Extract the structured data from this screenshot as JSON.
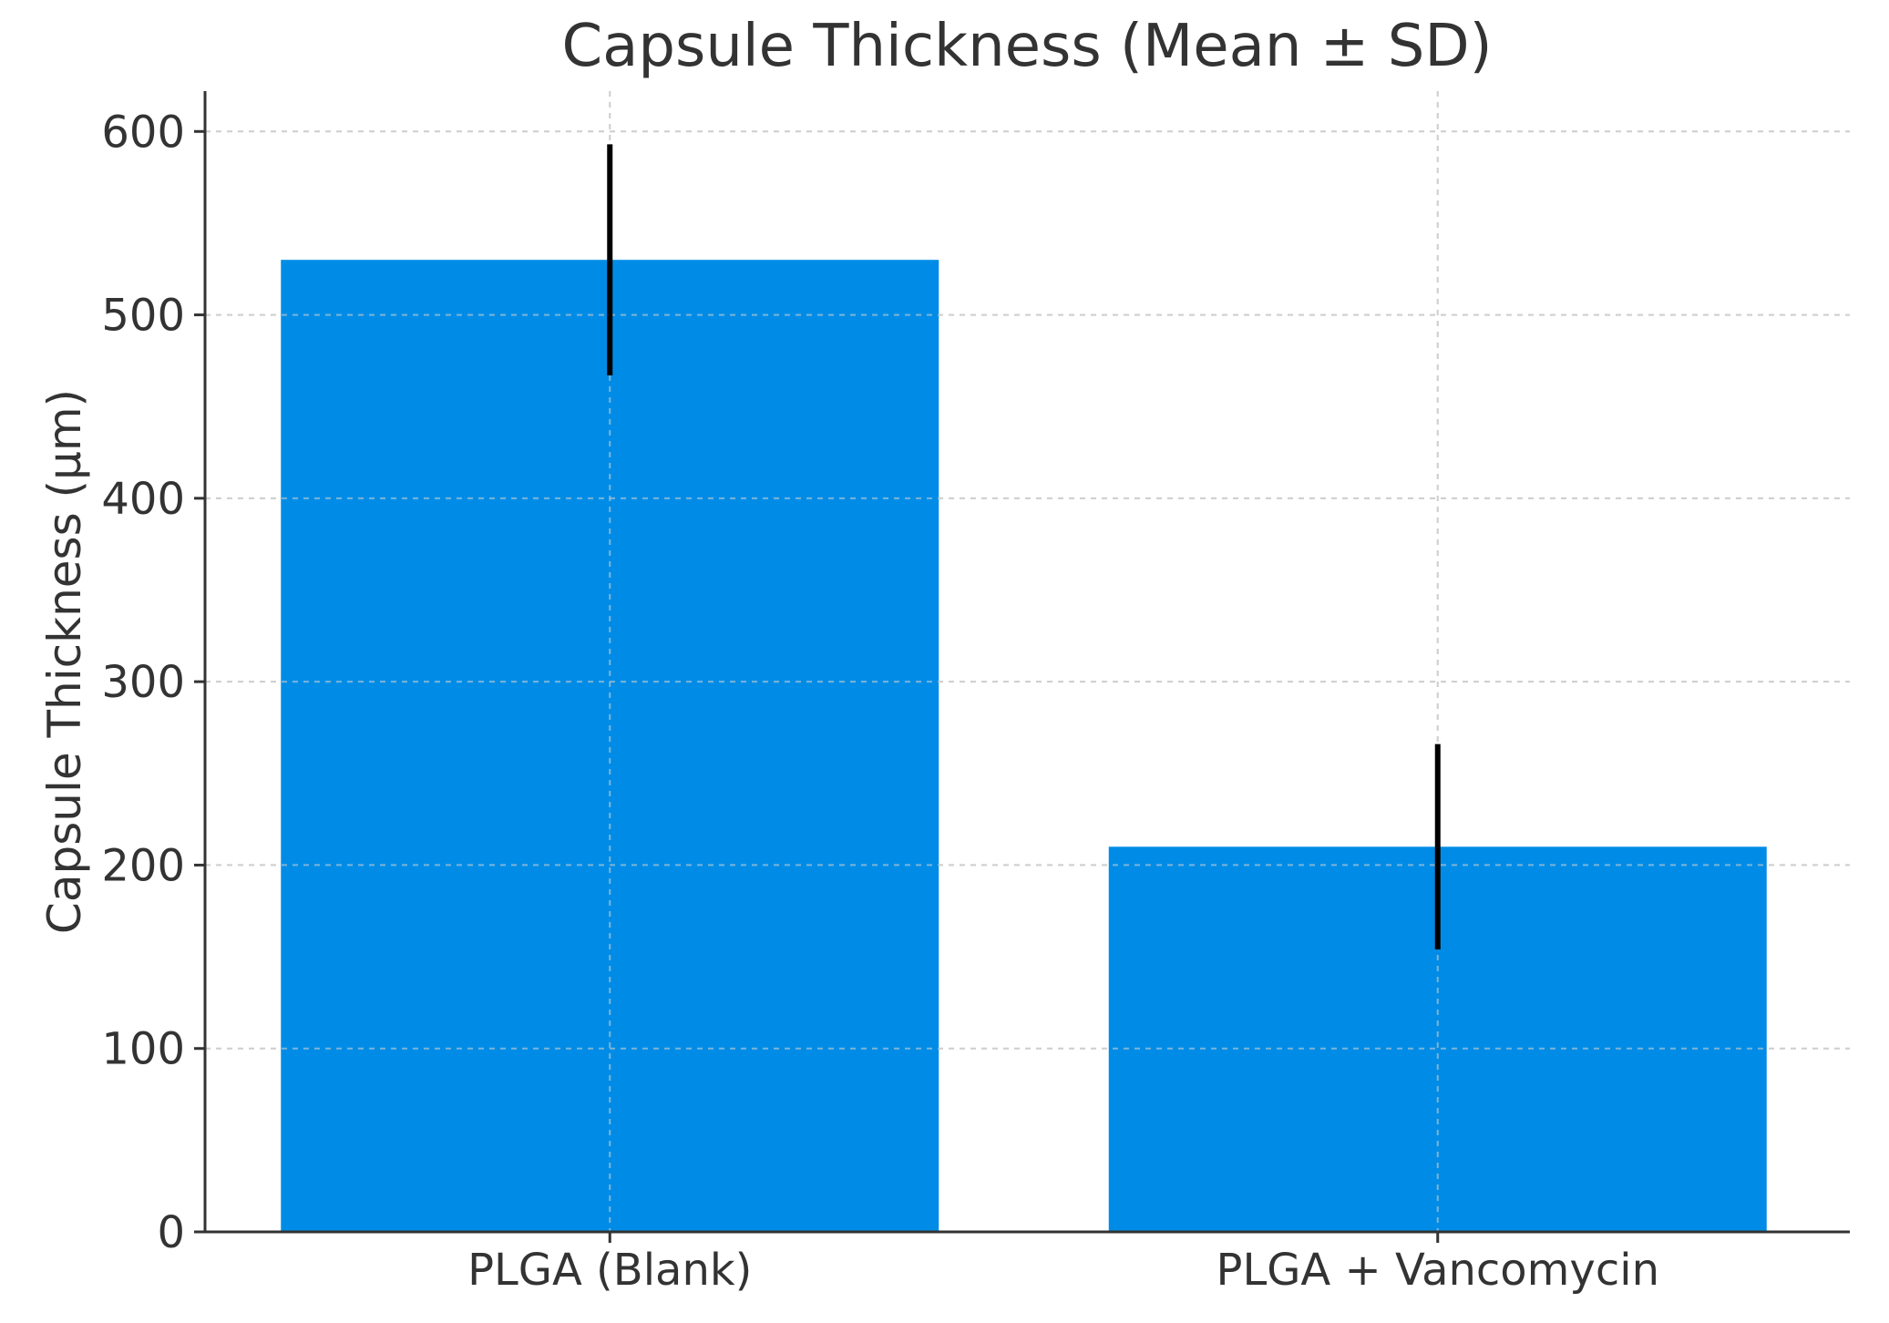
{
  "chart_data": {
    "type": "bar",
    "title": "Capsule Thickness (Mean ± SD)",
    "xlabel": "",
    "ylabel": "Capsule Thickness (μm)",
    "categories": [
      "PLGA (Blank)",
      "PLGA + Vancomycin"
    ],
    "values": [
      530,
      210
    ],
    "error": [
      63,
      56
    ],
    "ylim": [
      0,
      622
    ],
    "yticks": [
      0,
      100,
      200,
      300,
      400,
      500,
      600
    ],
    "grid": true,
    "bar_color": "#008ce6"
  }
}
